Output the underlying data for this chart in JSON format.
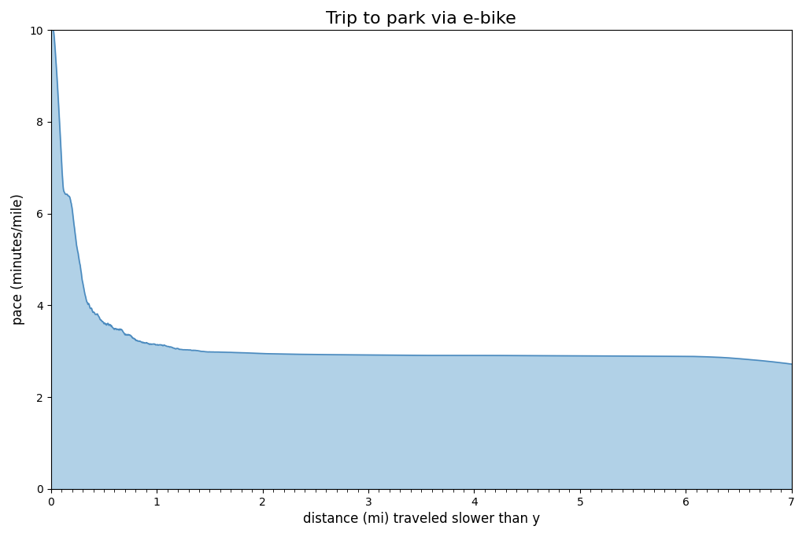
{
  "title": "Trip to park via e-bike",
  "xlabel": "distance (mi) traveled slower than y",
  "ylabel": "pace (minutes/mile)",
  "xlim": [
    0,
    7
  ],
  "ylim": [
    0,
    10
  ],
  "xticks": [
    0,
    1,
    2,
    3,
    4,
    5,
    6,
    7
  ],
  "yticks": [
    0,
    2,
    4,
    6,
    8,
    10
  ],
  "line_color": "#4C8BBF",
  "fill_color": "#7EB3D8",
  "fill_alpha": 0.6,
  "line_width": 1.2,
  "title_fontsize": 16,
  "label_fontsize": 12,
  "key_x": [
    0.0,
    0.02,
    0.05,
    0.08,
    0.12,
    0.18,
    0.25,
    0.35,
    0.45,
    0.55,
    0.65,
    0.75,
    0.85,
    0.95,
    1.05,
    1.2,
    1.4,
    1.6,
    1.8,
    2.0,
    2.5,
    3.0,
    3.5,
    4.0,
    4.5,
    5.0,
    5.5,
    6.0,
    6.3,
    6.6,
    6.9,
    7.0
  ],
  "key_y": [
    10.0,
    10.0,
    9.2,
    8.0,
    6.5,
    6.3,
    5.2,
    4.0,
    3.8,
    3.6,
    3.5,
    3.35,
    3.25,
    3.18,
    3.12,
    3.05,
    3.0,
    2.98,
    2.97,
    2.95,
    2.93,
    2.92,
    2.91,
    2.91,
    2.905,
    2.9,
    2.895,
    2.89,
    2.87,
    2.82,
    2.75,
    2.72
  ]
}
